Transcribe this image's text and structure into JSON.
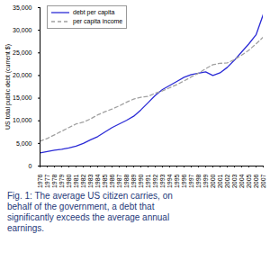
{
  "chart_data": {
    "type": "line",
    "caption": "Fig. 1: The average US citizen carries, on behalf of the government, a debt that significantly exceeds the average annual earnings.",
    "y_label": "US total public debt (current $)",
    "x": [
      1976,
      1977,
      1978,
      1979,
      1980,
      1981,
      1982,
      1983,
      1984,
      1985,
      1986,
      1987,
      1988,
      1989,
      1990,
      1991,
      1992,
      1993,
      1994,
      1995,
      1996,
      1997,
      1998,
      1999,
      2000,
      2001,
      2002,
      2003,
      2004,
      2005,
      2006,
      2007
    ],
    "series": [
      {
        "name": "debt per capita",
        "color": "#2b2bd6",
        "line_style": "solid",
        "values": [
          2900,
          3200,
          3500,
          3700,
          4000,
          4400,
          5000,
          5800,
          6500,
          7500,
          8500,
          9300,
          10100,
          11000,
          12400,
          14000,
          15600,
          16900,
          17800,
          18700,
          19600,
          20200,
          20500,
          20800,
          20000,
          20600,
          21800,
          23400,
          25200,
          27000,
          29000,
          33500
        ]
      },
      {
        "name": "per capita income",
        "color": "#a0a0a0",
        "line_style": "dashed",
        "values": [
          5500,
          6100,
          6900,
          7700,
          8500,
          9300,
          9700,
          10400,
          11300,
          12000,
          12600,
          13300,
          14100,
          14800,
          15200,
          15400,
          16100,
          16600,
          17300,
          18000,
          18800,
          19700,
          20500,
          21500,
          22400,
          22700,
          22800,
          23500,
          24500,
          25600,
          27000,
          28500
        ]
      }
    ],
    "xlim": [
      1976,
      2007
    ],
    "xticks": [
      1976,
      1977,
      1978,
      1979,
      1980,
      1981,
      1982,
      1983,
      1984,
      1985,
      1986,
      1987,
      1988,
      1989,
      1990,
      1991,
      1992,
      1993,
      1994,
      1995,
      1996,
      1997,
      1998,
      1999,
      2000,
      2001,
      2002,
      2003,
      2004,
      2005,
      2006,
      2007
    ],
    "ylim": [
      0,
      35000
    ],
    "yticks": [
      0,
      {
        "value": 5000,
        "label": "5,000"
      },
      {
        "value": 10000,
        "label": "10,000"
      },
      {
        "value": 15000,
        "label": "15,000"
      },
      {
        "value": 20000,
        "label": "20,000"
      },
      {
        "value": 25000,
        "label": "25,000"
      },
      {
        "value": 30000,
        "label": "30,000"
      },
      {
        "value": 35000,
        "label": "35,000"
      }
    ],
    "legend": "top-left",
    "grid": false
  }
}
